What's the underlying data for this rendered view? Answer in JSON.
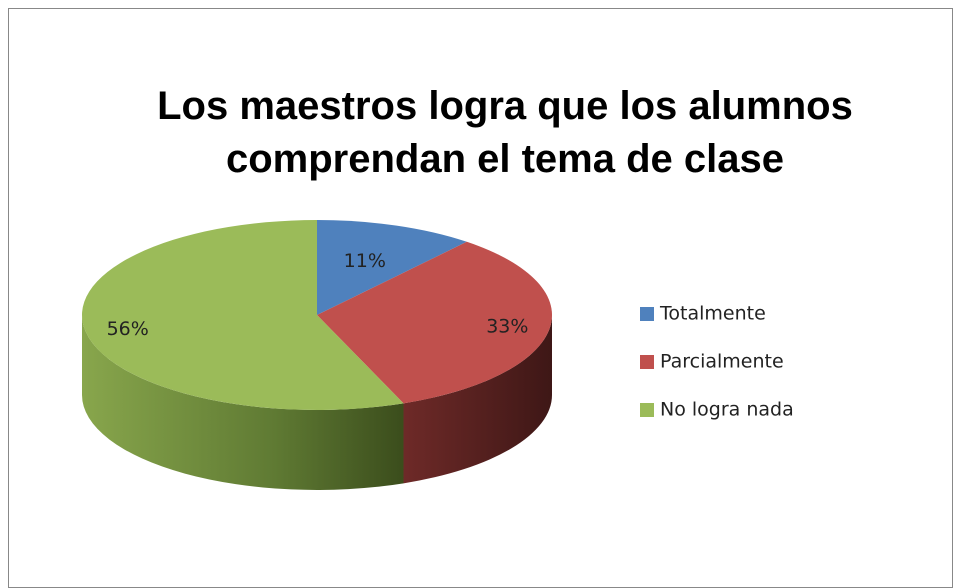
{
  "chart_data": {
    "type": "pie",
    "title": "Los maestros logra que los alumnos comprendan el tema de clase",
    "categories": [
      "Totalmente",
      "Parcialmente",
      "No logra nada"
    ],
    "values": [
      11,
      33,
      56
    ],
    "value_labels": [
      "11%",
      "33%",
      "56%"
    ],
    "colors": [
      "#4f81bd",
      "#c0504d",
      "#9bbb59"
    ],
    "legend": "right"
  }
}
